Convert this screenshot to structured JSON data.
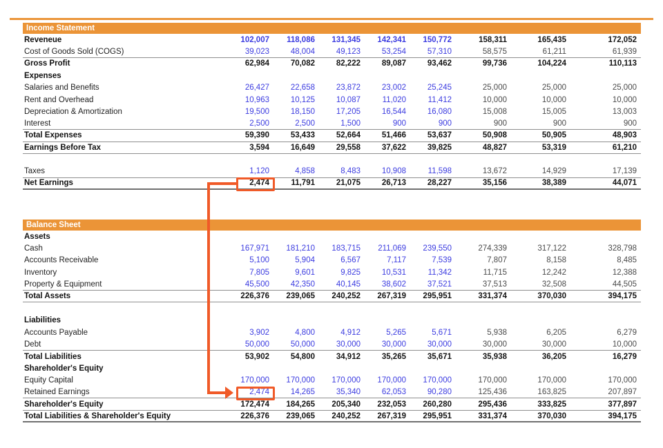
{
  "colors": {
    "accent_orange": "#EB9437",
    "arrow_orange": "#F05A28",
    "input_blue": "#3B3BE0",
    "muted_gray": "#4A4A4A",
    "rule_gray": "#8E8E8E",
    "rule_dark": "#6F6F6F"
  },
  "annotation": {
    "type": "flow-arrow",
    "from_row": "Net Earnings",
    "to_row": "Retained Earnings",
    "linked_value": "2,474"
  },
  "income_statement": {
    "title": "Income Statement",
    "rows": [
      {
        "id": "revenue",
        "type": "revhead",
        "label": "Reveneue",
        "values": [
          "102,007",
          "118,086",
          "131,345",
          "142,341",
          "150,772",
          "158,311",
          "165,435",
          "172,052"
        ]
      },
      {
        "id": "cogs",
        "type": "input",
        "label": "Cost of Goods Sold (COGS)",
        "rule": "b",
        "values": [
          "39,023",
          "48,004",
          "49,123",
          "53,254",
          "57,310",
          "58,575",
          "61,211",
          "61,939"
        ]
      },
      {
        "id": "gross-profit",
        "type": "total",
        "label": "Gross Profit",
        "values": [
          "62,984",
          "70,082",
          "82,222",
          "89,087",
          "93,462",
          "99,736",
          "104,224",
          "110,113"
        ]
      },
      {
        "id": "expenses",
        "type": "caption",
        "label": "Expenses"
      },
      {
        "id": "salaries",
        "type": "input",
        "label": "Salaries and Benefits",
        "values": [
          "26,427",
          "22,658",
          "23,872",
          "23,002",
          "25,245",
          "25,000",
          "25,000",
          "25,000"
        ]
      },
      {
        "id": "rent",
        "type": "input",
        "label": "Rent and Overhead",
        "values": [
          "10,963",
          "10,125",
          "10,087",
          "11,020",
          "11,412",
          "10,000",
          "10,000",
          "10,000"
        ]
      },
      {
        "id": "depreciation",
        "type": "input",
        "label": "Depreciation & Amortization",
        "values": [
          "19,500",
          "18,150",
          "17,205",
          "16,544",
          "16,080",
          "15,008",
          "15,005",
          "13,003"
        ]
      },
      {
        "id": "interest",
        "type": "input",
        "label": "Interest",
        "rule": "b",
        "values": [
          "2,500",
          "2,500",
          "1,500",
          "900",
          "900",
          "900",
          "900",
          "900"
        ]
      },
      {
        "id": "total-expenses",
        "type": "total",
        "label": "Total Expenses",
        "rule": "b",
        "values": [
          "59,390",
          "53,433",
          "52,664",
          "51,466",
          "53,637",
          "50,908",
          "50,905",
          "48,903"
        ]
      },
      {
        "id": "ebt",
        "type": "total",
        "label": "Earnings Before Tax",
        "rule": "b",
        "values": [
          "3,594",
          "16,649",
          "29,558",
          "37,622",
          "39,825",
          "48,827",
          "53,319",
          "61,210"
        ]
      },
      {
        "id": "spacer1",
        "type": "spacer"
      },
      {
        "id": "taxes",
        "type": "input",
        "label": "Taxes",
        "rule": "b",
        "values": [
          "1,120",
          "4,858",
          "8,483",
          "10,908",
          "11,598",
          "13,672",
          "14,929",
          "17,139"
        ]
      },
      {
        "id": "net-earnings",
        "type": "total",
        "label": "Net Earnings",
        "rule": "b2",
        "highlight": 0,
        "values": [
          "2,474",
          "11,791",
          "21,075",
          "26,713",
          "28,227",
          "35,156",
          "38,389",
          "44,071"
        ]
      }
    ]
  },
  "balance_sheet": {
    "title": "Balance Sheet",
    "rows": [
      {
        "id": "assets",
        "type": "caption",
        "label": "Assets"
      },
      {
        "id": "cash",
        "type": "input",
        "label": "Cash",
        "values": [
          "167,971",
          "181,210",
          "183,715",
          "211,069",
          "239,550",
          "274,339",
          "317,122",
          "328,798"
        ]
      },
      {
        "id": "accounts-receivable",
        "type": "input",
        "label": "Accounts Receivable",
        "values": [
          "5,100",
          "5,904",
          "6,567",
          "7,117",
          "7,539",
          "7,807",
          "8,158",
          "8,485"
        ]
      },
      {
        "id": "inventory",
        "type": "input",
        "label": "Inventory",
        "values": [
          "7,805",
          "9,601",
          "9,825",
          "10,531",
          "11,342",
          "11,715",
          "12,242",
          "12,388"
        ]
      },
      {
        "id": "property-equipment",
        "type": "input",
        "label": "Property & Equipment",
        "rule": "b",
        "values": [
          "45,500",
          "42,350",
          "40,145",
          "38,602",
          "37,521",
          "37,513",
          "32,508",
          "44,505"
        ]
      },
      {
        "id": "total-assets",
        "type": "total",
        "label": "Total Assets",
        "rule": "b",
        "values": [
          "226,376",
          "239,065",
          "240,252",
          "267,319",
          "295,951",
          "331,374",
          "370,030",
          "394,175"
        ]
      },
      {
        "id": "spacer2",
        "type": "spacer"
      },
      {
        "id": "liabilities",
        "type": "caption",
        "label": "Liabilities"
      },
      {
        "id": "accounts-payable",
        "type": "input",
        "label": "Accounts Payable",
        "values": [
          "3,902",
          "4,800",
          "4,912",
          "5,265",
          "5,671",
          "5,938",
          "6,205",
          "6,279"
        ]
      },
      {
        "id": "debt",
        "type": "input",
        "label": "Debt",
        "rule": "b",
        "values": [
          "50,000",
          "50,000",
          "30,000",
          "30,000",
          "30,000",
          "30,000",
          "30,000",
          "10,000"
        ]
      },
      {
        "id": "total-liabilities",
        "type": "total",
        "label": "Total Liabilities",
        "values": [
          "53,902",
          "54,800",
          "34,912",
          "35,265",
          "35,671",
          "35,938",
          "36,205",
          "16,279"
        ]
      },
      {
        "id": "shareholders-equity-caption",
        "type": "caption",
        "label": "Shareholder's Equity"
      },
      {
        "id": "equity-capital",
        "type": "input",
        "label": "Equity Capital",
        "values": [
          "170,000",
          "170,000",
          "170,000",
          "170,000",
          "170,000",
          "170,000",
          "170,000",
          "170,000"
        ]
      },
      {
        "id": "retained-earnings",
        "type": "input",
        "label": "Retained Earnings",
        "rule": "b",
        "highlight": 0,
        "values": [
          "2,474",
          "14,265",
          "35,340",
          "62,053",
          "90,280",
          "125,436",
          "163,825",
          "207,897"
        ]
      },
      {
        "id": "shareholders-equity-total",
        "type": "total",
        "label": "Shareholder's Equity",
        "rule": "b",
        "values": [
          "172,474",
          "184,265",
          "205,340",
          "232,053",
          "260,280",
          "295,436",
          "333,825",
          "377,897"
        ]
      },
      {
        "id": "total-liabilities-equity",
        "type": "total",
        "label": "Total Liabilities & Shareholder's Equity",
        "rule": "b2",
        "values": [
          "226,376",
          "239,065",
          "240,252",
          "267,319",
          "295,951",
          "331,374",
          "370,030",
          "394,175"
        ]
      }
    ]
  }
}
